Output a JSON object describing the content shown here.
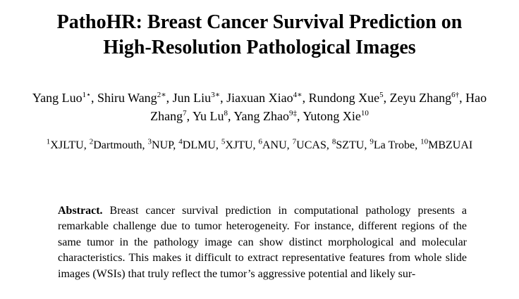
{
  "paper": {
    "title_line1": "PathoHR: Breast Cancer Survival Prediction on",
    "title_line2": "High-Resolution Pathological Images",
    "authors": [
      {
        "name": "Yang Luo",
        "sup": "1⋆",
        "sep": ", "
      },
      {
        "name": "Shiru Wang",
        "sup": "2∗",
        "sep": ", "
      },
      {
        "name": "Jun Liu",
        "sup": "3∗",
        "sep": ", "
      },
      {
        "name": "Jiaxuan Xiao",
        "sup": "4∗",
        "sep": ", "
      },
      {
        "name": "Rundong Xue",
        "sup": "5",
        "sep": ", "
      },
      {
        "name": "Zeyu Zhang",
        "sup": "6†",
        "sep": ", "
      },
      {
        "name": "Hao Zhang",
        "sup": "7",
        "sep": ", "
      },
      {
        "name": "Yu Lu",
        "sup": "8",
        "sep": ", "
      },
      {
        "name": "Yang Zhao",
        "sup": "9‡",
        "sep": ", "
      },
      {
        "name": "Yutong Xie",
        "sup": "10",
        "sep": ""
      }
    ],
    "affiliations": [
      {
        "sup": "1",
        "name": "XJLTU",
        "sep": ", "
      },
      {
        "sup": "2",
        "name": "Dartmouth",
        "sep": ", "
      },
      {
        "sup": "3",
        "name": "NUP",
        "sep": ", "
      },
      {
        "sup": "4",
        "name": "DLMU",
        "sep": ", "
      },
      {
        "sup": "5",
        "name": "XJTU",
        "sep": ", "
      },
      {
        "sup": "6",
        "name": "ANU",
        "sep": ", "
      },
      {
        "sup": "7",
        "name": "UCAS",
        "sep": ", "
      },
      {
        "sup": "8",
        "name": "SZTU",
        "sep": ", "
      },
      {
        "sup": "9",
        "name": "La Trobe",
        "sep": ", "
      },
      {
        "sup": "10",
        "name": "MBZUAI",
        "sep": ""
      }
    ],
    "abstract_label": "Abstract.",
    "abstract_text": "Breast cancer survival prediction in computational pathology presents a remarkable challenge due to tumor heterogeneity. For instance, different regions of the same tumor in the pathology image can show distinct morphological and molecular characteristics. This makes it difficult to extract representative features from whole slide images (WSIs) that truly reflect the tumor’s aggressive potential and likely sur-"
  }
}
